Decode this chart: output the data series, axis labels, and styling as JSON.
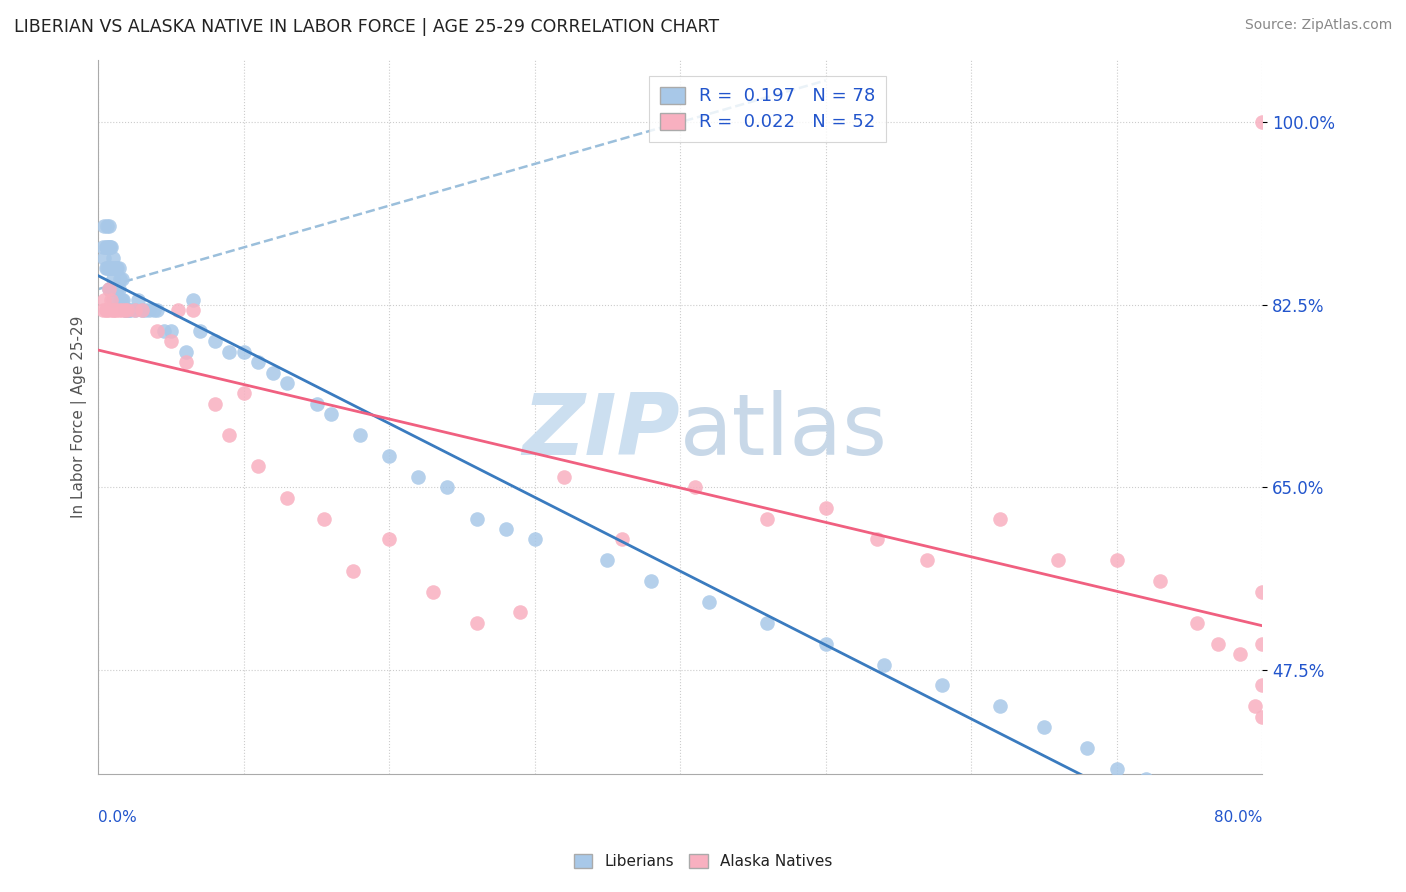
{
  "title": "LIBERIAN VS ALASKA NATIVE IN LABOR FORCE | AGE 25-29 CORRELATION CHART",
  "source": "Source: ZipAtlas.com",
  "ylabel": "In Labor Force | Age 25-29",
  "xmin": 0.0,
  "xmax": 0.8,
  "ymin": 0.375,
  "ymax": 1.06,
  "ytick_vals": [
    1.0,
    0.825,
    0.65,
    0.475
  ],
  "ytick_labels": [
    "100.0%",
    "82.5%",
    "65.0%",
    "47.5%"
  ],
  "liberian_color": "#a8c8e8",
  "alaska_color": "#f8b0c0",
  "liberian_line_color": "#3a7bbf",
  "alaska_line_color": "#f06080",
  "dashed_line_color": "#90b8d8",
  "watermark_color": "#ccdff0",
  "lib_x": [
    0.003,
    0.004,
    0.004,
    0.005,
    0.005,
    0.006,
    0.006,
    0.006,
    0.007,
    0.007,
    0.007,
    0.007,
    0.008,
    0.008,
    0.008,
    0.009,
    0.009,
    0.009,
    0.01,
    0.01,
    0.01,
    0.011,
    0.011,
    0.012,
    0.012,
    0.013,
    0.013,
    0.014,
    0.014,
    0.015,
    0.015,
    0.016,
    0.016,
    0.017,
    0.018,
    0.019,
    0.02,
    0.021,
    0.022,
    0.025,
    0.027,
    0.03,
    0.032,
    0.035,
    0.038,
    0.04,
    0.045,
    0.05,
    0.06,
    0.065,
    0.07,
    0.08,
    0.09,
    0.1,
    0.11,
    0.12,
    0.13,
    0.15,
    0.16,
    0.18,
    0.2,
    0.22,
    0.24,
    0.26,
    0.28,
    0.3,
    0.35,
    0.38,
    0.42,
    0.46,
    0.5,
    0.54,
    0.58,
    0.62,
    0.65,
    0.68,
    0.7,
    0.72
  ],
  "lib_y": [
    0.88,
    0.9,
    0.87,
    0.86,
    0.88,
    0.86,
    0.88,
    0.9,
    0.84,
    0.86,
    0.88,
    0.9,
    0.84,
    0.86,
    0.88,
    0.84,
    0.86,
    0.88,
    0.83,
    0.85,
    0.87,
    0.84,
    0.86,
    0.84,
    0.86,
    0.84,
    0.86,
    0.84,
    0.86,
    0.83,
    0.85,
    0.83,
    0.85,
    0.83,
    0.82,
    0.82,
    0.82,
    0.82,
    0.82,
    0.82,
    0.83,
    0.82,
    0.82,
    0.82,
    0.82,
    0.82,
    0.8,
    0.8,
    0.78,
    0.83,
    0.8,
    0.79,
    0.78,
    0.78,
    0.77,
    0.76,
    0.75,
    0.73,
    0.72,
    0.7,
    0.68,
    0.66,
    0.65,
    0.62,
    0.61,
    0.6,
    0.58,
    0.56,
    0.54,
    0.52,
    0.5,
    0.48,
    0.46,
    0.44,
    0.42,
    0.4,
    0.38,
    0.37
  ],
  "ak_x": [
    0.003,
    0.004,
    0.005,
    0.006,
    0.007,
    0.008,
    0.009,
    0.01,
    0.011,
    0.012,
    0.014,
    0.016,
    0.018,
    0.02,
    0.025,
    0.03,
    0.04,
    0.05,
    0.055,
    0.06,
    0.065,
    0.08,
    0.09,
    0.1,
    0.11,
    0.13,
    0.155,
    0.175,
    0.2,
    0.23,
    0.26,
    0.29,
    0.32,
    0.36,
    0.41,
    0.46,
    0.5,
    0.535,
    0.57,
    0.62,
    0.66,
    0.7,
    0.73,
    0.755,
    0.77,
    0.785,
    0.795,
    0.8,
    0.8,
    0.8,
    0.8,
    0.8
  ],
  "ak_y": [
    0.82,
    0.83,
    0.82,
    0.82,
    0.84,
    0.82,
    0.83,
    0.82,
    0.82,
    0.82,
    0.82,
    0.82,
    0.82,
    0.82,
    0.82,
    0.82,
    0.8,
    0.79,
    0.82,
    0.77,
    0.82,
    0.73,
    0.7,
    0.74,
    0.67,
    0.64,
    0.62,
    0.57,
    0.6,
    0.55,
    0.52,
    0.53,
    0.66,
    0.6,
    0.65,
    0.62,
    0.63,
    0.6,
    0.58,
    0.62,
    0.58,
    0.58,
    0.56,
    0.52,
    0.5,
    0.49,
    0.44,
    0.43,
    0.46,
    0.5,
    0.55,
    1.0
  ]
}
